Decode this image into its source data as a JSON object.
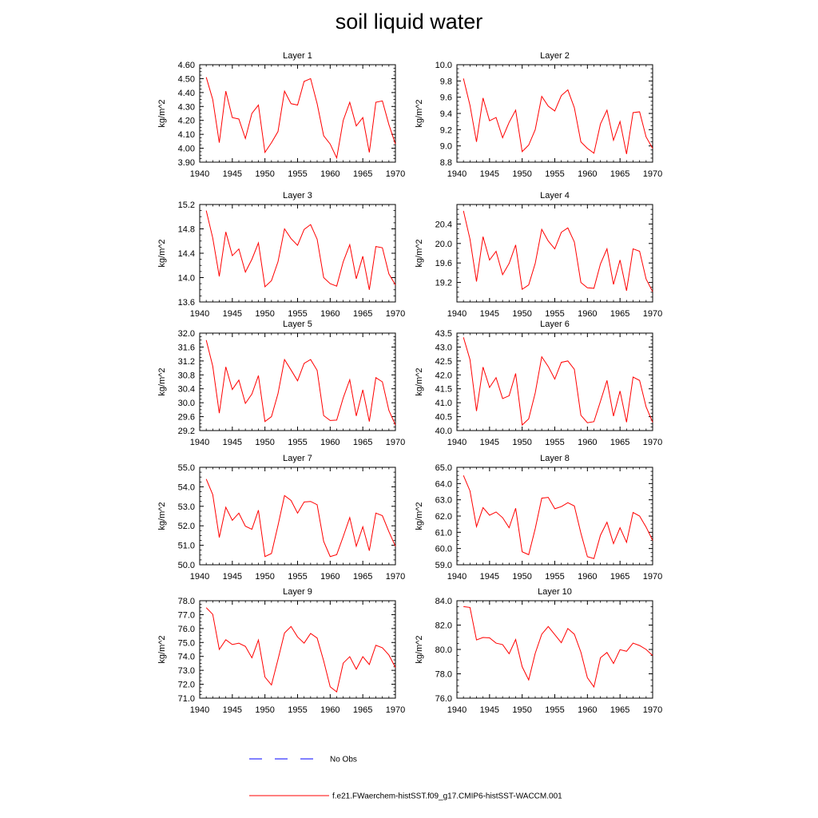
{
  "title": "soil liquid water",
  "legend": {
    "obs_label": "No Obs",
    "model_label": "f.e21.FWaerchem-histSST.f09_g17.CMIP6-histSST-WACCM.001",
    "colors": {
      "model": "#ff0000",
      "obs": "#0000ff"
    }
  },
  "chart_data": [
    {
      "type": "line",
      "title": "Layer 1",
      "ylabel": "kg/m^2",
      "xlim": [
        1940,
        1970
      ],
      "ylim": [
        3.9,
        4.6
      ],
      "xticks": [
        "1940",
        "1945",
        "1950",
        "1955",
        "1960",
        "1965",
        "1970"
      ],
      "yticks": [
        "3.90",
        "4.00",
        "4.10",
        "4.20",
        "4.30",
        "4.40",
        "4.50",
        "4.60"
      ],
      "x": [
        1941,
        1942,
        1943,
        1944,
        1945,
        1946,
        1947,
        1948,
        1949,
        1950,
        1951,
        1952,
        1953,
        1954,
        1955,
        1956,
        1957,
        1958,
        1959,
        1960,
        1961,
        1962,
        1963,
        1964,
        1965,
        1966,
        1967,
        1968,
        1969,
        1970
      ],
      "series": [
        {
          "values": [
            4.51,
            4.35,
            4.04,
            4.41,
            4.22,
            4.21,
            4.07,
            4.25,
            4.31,
            3.97,
            4.04,
            4.12,
            4.41,
            4.32,
            4.31,
            4.48,
            4.5,
            4.32,
            4.09,
            4.03,
            3.93,
            4.2,
            4.33,
            4.16,
            4.22,
            3.97,
            4.33,
            4.34,
            4.17,
            4.03
          ]
        }
      ]
    },
    {
      "type": "line",
      "title": "Layer 2",
      "ylabel": "kg/m^2",
      "xlim": [
        1940,
        1970
      ],
      "ylim": [
        8.8,
        10.0
      ],
      "xticks": [
        "1940",
        "1945",
        "1950",
        "1955",
        "1960",
        "1965",
        "1970"
      ],
      "yticks": [
        "8.8",
        "9.0",
        "9.2",
        "9.4",
        "9.6",
        "9.8",
        "10.0"
      ],
      "x": [
        1941,
        1942,
        1943,
        1944,
        1945,
        1946,
        1947,
        1948,
        1949,
        1950,
        1951,
        1952,
        1953,
        1954,
        1955,
        1956,
        1957,
        1958,
        1959,
        1960,
        1961,
        1962,
        1963,
        1964,
        1965,
        1966,
        1967,
        1968,
        1969,
        1970
      ],
      "series": [
        {
          "values": [
            9.83,
            9.5,
            9.05,
            9.59,
            9.31,
            9.35,
            9.1,
            9.29,
            9.44,
            8.93,
            9.01,
            9.2,
            9.61,
            9.49,
            9.43,
            9.62,
            9.69,
            9.47,
            9.05,
            8.97,
            8.91,
            9.27,
            9.44,
            9.07,
            9.3,
            8.9,
            9.41,
            9.42,
            9.11,
            8.97
          ]
        }
      ]
    },
    {
      "type": "line",
      "title": "Layer 3",
      "ylabel": "kg/m^2",
      "xlim": [
        1940,
        1970
      ],
      "ylim": [
        13.6,
        15.2
      ],
      "xticks": [
        "1940",
        "1945",
        "1950",
        "1955",
        "1960",
        "1965",
        "1970"
      ],
      "yticks": [
        "13.6",
        "14.0",
        "14.4",
        "14.8",
        "15.2"
      ],
      "x": [
        1941,
        1942,
        1943,
        1944,
        1945,
        1946,
        1947,
        1948,
        1949,
        1950,
        1951,
        1952,
        1953,
        1954,
        1955,
        1956,
        1957,
        1958,
        1959,
        1960,
        1961,
        1962,
        1963,
        1964,
        1965,
        1966,
        1967,
        1968,
        1969,
        1970
      ],
      "series": [
        {
          "values": [
            15.1,
            14.65,
            14.02,
            14.75,
            14.36,
            14.47,
            14.09,
            14.3,
            14.57,
            13.85,
            13.95,
            14.26,
            14.8,
            14.64,
            14.53,
            14.79,
            14.87,
            14.63,
            14.0,
            13.9,
            13.86,
            14.26,
            14.54,
            13.98,
            14.35,
            13.8,
            14.51,
            14.49,
            14.06,
            13.88
          ]
        }
      ]
    },
    {
      "type": "line",
      "title": "Layer 4",
      "ylabel": "kg/m^2",
      "xlim": [
        1940,
        1970
      ],
      "ylim": [
        18.8,
        20.8
      ],
      "xticks": [
        "1940",
        "1945",
        "1950",
        "1955",
        "1960",
        "1965",
        "1970"
      ],
      "yticks": [
        "19.2",
        "19.6",
        "20.0",
        "20.4"
      ],
      "x": [
        1941,
        1942,
        1943,
        1944,
        1945,
        1946,
        1947,
        1948,
        1949,
        1950,
        1951,
        1952,
        1953,
        1954,
        1955,
        1956,
        1957,
        1958,
        1959,
        1960,
        1961,
        1962,
        1963,
        1964,
        1965,
        1966,
        1967,
        1968,
        1969,
        1970
      ],
      "series": [
        {
          "values": [
            20.67,
            20.09,
            19.22,
            20.14,
            19.66,
            19.84,
            19.36,
            19.59,
            19.97,
            19.06,
            19.15,
            19.59,
            20.29,
            20.05,
            19.89,
            20.23,
            20.32,
            20.03,
            19.2,
            19.09,
            19.08,
            19.58,
            19.89,
            19.16,
            19.66,
            19.03,
            19.89,
            19.84,
            19.27,
            19.01
          ]
        }
      ]
    },
    {
      "type": "line",
      "title": "Layer 5",
      "ylabel": "kg/m^2",
      "xlim": [
        1940,
        1970
      ],
      "ylim": [
        29.2,
        32.0
      ],
      "xticks": [
        "1940",
        "1945",
        "1950",
        "1955",
        "1960",
        "1965",
        "1970"
      ],
      "yticks": [
        "29.2",
        "29.6",
        "30.0",
        "30.4",
        "30.8",
        "31.2",
        "31.6",
        "32.0"
      ],
      "x": [
        1941,
        1942,
        1943,
        1944,
        1945,
        1946,
        1947,
        1948,
        1949,
        1950,
        1951,
        1952,
        1953,
        1954,
        1955,
        1956,
        1957,
        1958,
        1959,
        1960,
        1961,
        1962,
        1963,
        1964,
        1965,
        1966,
        1967,
        1968,
        1969,
        1970
      ],
      "series": [
        {
          "values": [
            31.8,
            31.05,
            29.7,
            31.03,
            30.38,
            30.65,
            29.98,
            30.25,
            30.78,
            29.46,
            29.6,
            30.26,
            31.24,
            30.94,
            30.63,
            31.13,
            31.24,
            30.93,
            29.63,
            29.49,
            29.5,
            30.14,
            30.66,
            29.62,
            30.37,
            29.46,
            30.72,
            30.6,
            29.78,
            29.36
          ]
        }
      ]
    },
    {
      "type": "line",
      "title": "Layer 6",
      "ylabel": "kg/m^2",
      "xlim": [
        1940,
        1970
      ],
      "ylim": [
        40.0,
        43.5
      ],
      "xticks": [
        "1940",
        "1945",
        "1950",
        "1955",
        "1960",
        "1965",
        "1970"
      ],
      "yticks": [
        "40.0",
        "40.5",
        "41.0",
        "41.5",
        "42.0",
        "42.5",
        "43.0",
        "43.5"
      ],
      "x": [
        1941,
        1942,
        1943,
        1944,
        1945,
        1946,
        1947,
        1948,
        1949,
        1950,
        1951,
        1952,
        1953,
        1954,
        1955,
        1956,
        1957,
        1958,
        1959,
        1960,
        1961,
        1962,
        1963,
        1964,
        1965,
        1966,
        1967,
        1968,
        1969,
        1970
      ],
      "series": [
        {
          "values": [
            43.35,
            42.55,
            40.7,
            42.28,
            41.55,
            41.9,
            41.15,
            41.25,
            42.05,
            40.2,
            40.42,
            41.35,
            42.65,
            42.3,
            41.85,
            42.45,
            42.5,
            42.2,
            40.55,
            40.28,
            40.32,
            41.05,
            41.8,
            40.52,
            41.42,
            40.3,
            41.92,
            41.8,
            40.85,
            40.3
          ]
        }
      ]
    },
    {
      "type": "line",
      "title": "Layer 7",
      "ylabel": "kg/m^2",
      "xlim": [
        1940,
        1970
      ],
      "ylim": [
        50.0,
        55.0
      ],
      "xticks": [
        "1940",
        "1945",
        "1950",
        "1955",
        "1960",
        "1965",
        "1970"
      ],
      "yticks": [
        "50.0",
        "51.0",
        "52.0",
        "53.0",
        "54.0",
        "55.0"
      ],
      "x": [
        1941,
        1942,
        1943,
        1944,
        1945,
        1946,
        1947,
        1948,
        1949,
        1950,
        1951,
        1952,
        1953,
        1954,
        1955,
        1956,
        1957,
        1958,
        1959,
        1960,
        1961,
        1962,
        1963,
        1964,
        1965,
        1966,
        1967,
        1968,
        1969,
        1970
      ],
      "series": [
        {
          "values": [
            54.4,
            53.6,
            51.4,
            52.95,
            52.28,
            52.65,
            51.98,
            51.82,
            52.8,
            50.42,
            50.58,
            52.02,
            53.55,
            53.3,
            52.65,
            53.22,
            53.25,
            53.08,
            51.2,
            50.42,
            50.52,
            51.45,
            52.42,
            50.95,
            51.95,
            50.72,
            52.65,
            52.52,
            51.7,
            50.95
          ]
        }
      ]
    },
    {
      "type": "line",
      "title": "Layer 8",
      "ylabel": "kg/m^2",
      "xlim": [
        1940,
        1970
      ],
      "ylim": [
        59.0,
        65.0
      ],
      "xticks": [
        "1940",
        "1945",
        "1950",
        "1955",
        "1960",
        "1965",
        "1970"
      ],
      "yticks": [
        "59.0",
        "60.0",
        "61.0",
        "62.0",
        "63.0",
        "64.0",
        "65.0"
      ],
      "x": [
        1941,
        1942,
        1943,
        1944,
        1945,
        1946,
        1947,
        1948,
        1949,
        1950,
        1951,
        1952,
        1953,
        1954,
        1955,
        1956,
        1957,
        1958,
        1959,
        1960,
        1961,
        1962,
        1963,
        1964,
        1965,
        1966,
        1967,
        1968,
        1969,
        1970
      ],
      "series": [
        {
          "values": [
            64.5,
            63.55,
            61.35,
            62.52,
            62.05,
            62.25,
            61.9,
            61.28,
            62.48,
            59.8,
            59.62,
            61.22,
            63.1,
            63.15,
            62.45,
            62.58,
            62.82,
            62.62,
            60.95,
            59.5,
            59.38,
            60.82,
            61.62,
            60.3,
            61.28,
            60.38,
            62.22,
            62.0,
            61.32,
            60.5
          ]
        }
      ]
    },
    {
      "type": "line",
      "title": "Layer 9",
      "ylabel": "kg/m^2",
      "xlim": [
        1940,
        1970
      ],
      "ylim": [
        71.0,
        78.0
      ],
      "xticks": [
        "1940",
        "1945",
        "1950",
        "1955",
        "1960",
        "1965",
        "1970"
      ],
      "yticks": [
        "71.0",
        "72.0",
        "73.0",
        "74.0",
        "75.0",
        "76.0",
        "77.0",
        "78.0"
      ],
      "x": [
        1941,
        1942,
        1943,
        1944,
        1945,
        1946,
        1947,
        1948,
        1949,
        1950,
        1951,
        1952,
        1953,
        1954,
        1955,
        1956,
        1957,
        1958,
        1959,
        1960,
        1961,
        1962,
        1963,
        1964,
        1965,
        1966,
        1967,
        1968,
        1969,
        1970
      ],
      "series": [
        {
          "values": [
            77.5,
            77.02,
            74.5,
            75.2,
            74.85,
            74.95,
            74.72,
            73.9,
            75.18,
            72.52,
            71.95,
            73.78,
            75.68,
            76.15,
            75.4,
            74.95,
            75.65,
            75.32,
            73.68,
            71.82,
            71.45,
            73.52,
            73.98,
            73.08,
            73.98,
            73.42,
            74.8,
            74.62,
            74.1,
            73.2
          ]
        }
      ]
    },
    {
      "type": "line",
      "title": "Layer 10",
      "ylabel": "kg/m^2",
      "xlim": [
        1940,
        1970
      ],
      "ylim": [
        76.0,
        84.0
      ],
      "xticks": [
        "1940",
        "1945",
        "1950",
        "1955",
        "1960",
        "1965",
        "1970"
      ],
      "yticks": [
        "76.0",
        "78.0",
        "80.0",
        "82.0",
        "84.0"
      ],
      "x": [
        1941,
        1942,
        1943,
        1944,
        1945,
        1946,
        1947,
        1948,
        1949,
        1950,
        1951,
        1952,
        1953,
        1954,
        1955,
        1956,
        1957,
        1958,
        1959,
        1960,
        1961,
        1962,
        1963,
        1964,
        1965,
        1966,
        1967,
        1968,
        1969,
        1970
      ],
      "series": [
        {
          "values": [
            83.52,
            83.45,
            80.78,
            80.98,
            80.95,
            80.52,
            80.4,
            79.65,
            80.82,
            78.58,
            77.5,
            79.68,
            81.25,
            81.88,
            81.22,
            80.55,
            81.72,
            81.25,
            79.78,
            77.68,
            76.92,
            79.32,
            79.75,
            78.85,
            79.98,
            79.85,
            80.52,
            80.32,
            80.0,
            79.5
          ]
        }
      ]
    }
  ]
}
